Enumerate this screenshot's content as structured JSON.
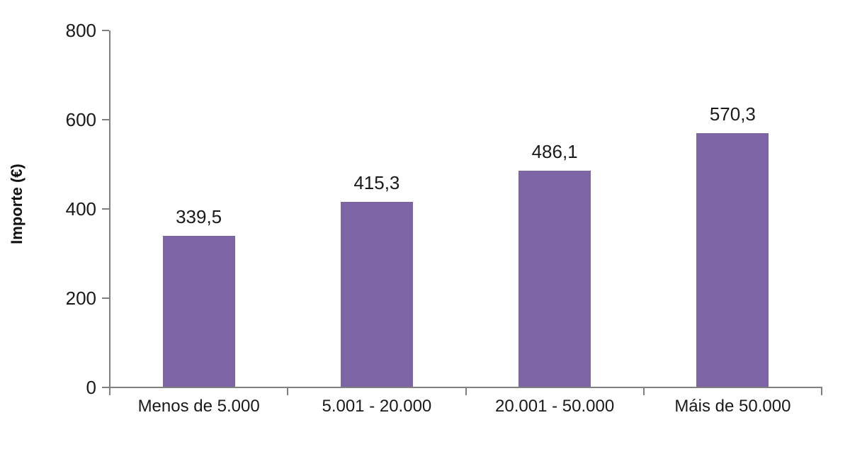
{
  "chart_data": {
    "type": "bar",
    "title": "",
    "xlabel": "",
    "ylabel": "Importe (€)",
    "categories": [
      "Menos de 5.000",
      "5.001 - 20.000",
      "20.001 - 50.000",
      "Máis de 50.000"
    ],
    "values": [
      339.5,
      415.3,
      486.1,
      570.3
    ],
    "value_labels": [
      "339,5",
      "415,3",
      "486,1",
      "570,3"
    ],
    "yticks": [
      0,
      200,
      400,
      600,
      800
    ],
    "ytick_labels": [
      "0",
      "200",
      "400",
      "600",
      "800"
    ],
    "ylim": [
      0,
      800
    ],
    "grid": false,
    "legend": false,
    "bar_color": "#7D64A5",
    "axis_color": "#808080",
    "text_color": "#1A1A1A",
    "background_color": "#FFFFFF"
  }
}
